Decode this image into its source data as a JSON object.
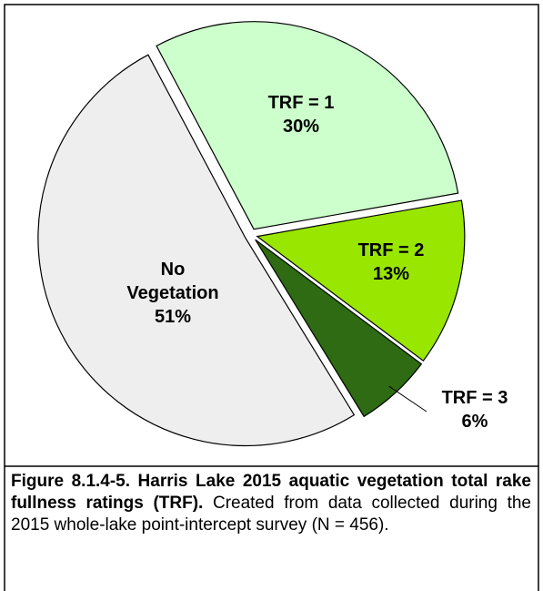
{
  "chart_data": {
    "type": "pie",
    "categories": [
      "TRF = 1",
      "TRF = 2",
      "TRF = 3",
      "No Vegetation"
    ],
    "values": [
      30,
      13,
      6,
      51
    ],
    "value_labels": [
      "30%",
      "13%",
      "6%",
      "51%"
    ],
    "colors": [
      "#ccffcc",
      "#99e600",
      "#2e6b12",
      "#eeeeee"
    ]
  },
  "caption": {
    "bold": "Figure 8.1.4-5.  Harris Lake 2015 aquatic vegetation total rake fullness ratings (TRF).",
    "text": "Created from data collected during the 2015 whole-lake point-intercept survey (N = 456)."
  }
}
